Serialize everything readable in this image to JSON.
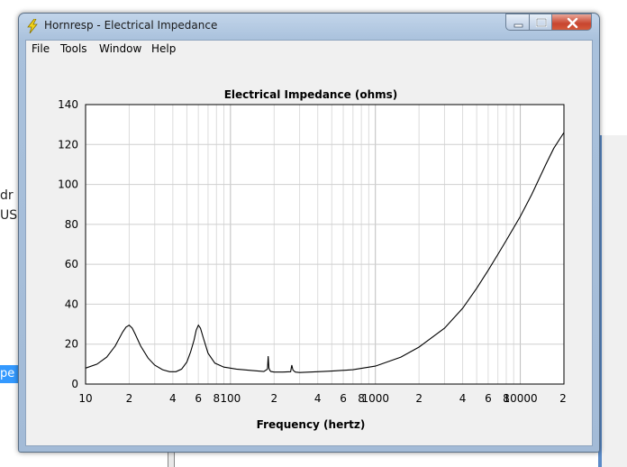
{
  "background": {
    "fragment_1": "dr",
    "fragment_2": "US",
    "fragment_3": "pe"
  },
  "window": {
    "title": "Hornresp - Electrical Impedance",
    "icon": "lightning-bolt-icon",
    "accent": "#a9c1dc",
    "controls": {
      "minimize": "minimize-icon",
      "maximize": "maximize-icon",
      "close": "close-icon"
    }
  },
  "menu": {
    "items": [
      "File",
      "Tools",
      "Window",
      "Help"
    ]
  },
  "chart_data": {
    "type": "line",
    "title": "Electrical Impedance (ohms)",
    "xlabel": "Frequency (hertz)",
    "ylabel": "",
    "x_scale": "log",
    "xlim": [
      10,
      20000
    ],
    "ylim": [
      0,
      140
    ],
    "y_ticks": [
      0,
      20,
      40,
      60,
      80,
      100,
      120,
      140
    ],
    "x_tick_labels": [
      {
        "value": 10,
        "label": "10"
      },
      {
        "value": 20,
        "label": "2"
      },
      {
        "value": 40,
        "label": "4"
      },
      {
        "value": 60,
        "label": "6"
      },
      {
        "value": 80,
        "label": "8"
      },
      {
        "value": 100,
        "label": "100"
      },
      {
        "value": 200,
        "label": "2"
      },
      {
        "value": 400,
        "label": "4"
      },
      {
        "value": 600,
        "label": "6"
      },
      {
        "value": 800,
        "label": "8"
      },
      {
        "value": 1000,
        "label": "1000"
      },
      {
        "value": 2000,
        "label": "2"
      },
      {
        "value": 4000,
        "label": "4"
      },
      {
        "value": 6000,
        "label": "6"
      },
      {
        "value": 8000,
        "label": "8"
      },
      {
        "value": 10000,
        "label": "10000"
      },
      {
        "value": 20000,
        "label": "2"
      }
    ],
    "grid": true,
    "line_color": "#000000",
    "series": [
      {
        "x": [
          10,
          12,
          14,
          16,
          18,
          19,
          20,
          21,
          22,
          24,
          27,
          30,
          34,
          38,
          42,
          46,
          50,
          53,
          56,
          58,
          60,
          62,
          65,
          70,
          78,
          90,
          110,
          140,
          170,
          180,
          182,
          184,
          187,
          190,
          200,
          230,
          260,
          265,
          270,
          280,
          300,
          400,
          500,
          700,
          1000,
          1500,
          2000,
          3000,
          4000,
          5000,
          6000,
          7000,
          8000,
          10000,
          12000,
          15000,
          17000,
          20000
        ],
        "y": [
          8,
          10,
          13.5,
          19,
          26,
          28.5,
          29.5,
          28,
          25,
          19,
          13,
          9.5,
          7.2,
          6.2,
          6.2,
          7.5,
          11,
          16,
          22,
          27,
          29.5,
          28,
          23,
          15.5,
          10.5,
          8.5,
          7.5,
          6.8,
          6.3,
          7.5,
          14,
          8,
          6.8,
          6.3,
          6,
          6,
          6.2,
          9.5,
          7,
          6,
          5.8,
          6.2,
          6.5,
          7.2,
          9,
          13.5,
          18.5,
          28,
          38,
          48,
          57,
          65,
          72,
          84,
          95,
          110,
          118,
          126
        ]
      }
    ]
  }
}
